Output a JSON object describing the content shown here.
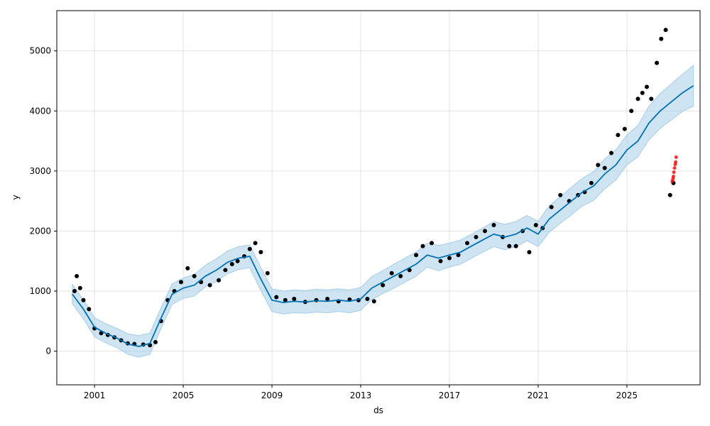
{
  "chart_data": {
    "type": "scatter",
    "title": "",
    "xlabel": "ds",
    "ylabel": "y",
    "xlim": [
      1999.3,
      2028.3
    ],
    "ylim": [
      -560,
      5670
    ],
    "x_ticks": [
      2001,
      2005,
      2009,
      2013,
      2017,
      2021,
      2025
    ],
    "x_tick_labels": [
      "2001",
      "2005",
      "2009",
      "2013",
      "2017",
      "2021",
      "2025"
    ],
    "y_ticks": [
      0,
      1000,
      2000,
      3000,
      4000,
      5000
    ],
    "y_tick_labels": [
      "0",
      "1000",
      "2000",
      "3000",
      "4000",
      "5000"
    ],
    "grid": true,
    "colors": {
      "observed": "#000000",
      "forecast": "#0072b2",
      "interval": "#a6cde8",
      "outliers": "#ff0000"
    },
    "series": [
      {
        "role": "observed",
        "x": [
          2000.1,
          2000.2,
          2000.35,
          2000.5,
          2000.75,
          2001.0,
          2001.3,
          2001.6,
          2001.9,
          2002.2,
          2002.5,
          2002.8,
          2003.2,
          2003.5,
          2003.75,
          2004.0,
          2004.3,
          2004.6,
          2004.9,
          2005.2,
          2005.5,
          2005.8,
          2006.2,
          2006.6,
          2006.9,
          2007.2,
          2007.45,
          2007.75,
          2008.0,
          2008.25,
          2008.5,
          2008.8,
          2009.2,
          2009.6,
          2010.0,
          2010.5,
          2011.0,
          2011.5,
          2012.0,
          2012.5,
          2012.9,
          2013.3,
          2013.6,
          2014.0,
          2014.4,
          2014.8,
          2015.2,
          2015.5,
          2015.8,
          2016.2,
          2016.6,
          2017.0,
          2017.4,
          2017.8,
          2018.2,
          2018.6,
          2019.0,
          2019.4,
          2019.7,
          2020.0,
          2020.3,
          2020.6,
          2020.9,
          2021.2,
          2021.6,
          2022.0,
          2022.4,
          2022.8,
          2023.1,
          2023.4,
          2023.7,
          2024.0,
          2024.3,
          2024.6,
          2024.9,
          2025.2,
          2025.5,
          2025.7,
          2025.9,
          2026.1,
          2026.35,
          2026.55,
          2026.75,
          2026.95,
          2027.1
        ],
        "values": [
          1000,
          1250,
          1050,
          850,
          700,
          380,
          300,
          270,
          230,
          180,
          130,
          120,
          110,
          100,
          150,
          500,
          850,
          1000,
          1150,
          1380,
          1250,
          1150,
          1100,
          1180,
          1350,
          1450,
          1500,
          1580,
          1700,
          1800,
          1650,
          1300,
          900,
          850,
          870,
          820,
          850,
          870,
          830,
          860,
          850,
          870,
          830,
          1100,
          1300,
          1250,
          1350,
          1600,
          1750,
          1800,
          1500,
          1550,
          1600,
          1800,
          1900,
          2000,
          2100,
          1900,
          1750,
          1750,
          2000,
          1650,
          2100,
          2050,
          2400,
          2600,
          2500,
          2600,
          2650,
          2800,
          3100,
          3050,
          3300,
          3600,
          3700,
          4000,
          4200,
          4300,
          4400,
          4200,
          4800,
          5200,
          5350,
          2600,
          2800
        ]
      },
      {
        "role": "outliers",
        "x": [
          2027.05,
          2027.08,
          2027.1,
          2027.12,
          2027.15,
          2027.18,
          2027.2,
          2027.22
        ],
        "values": [
          2830,
          2870,
          2910,
          2980,
          3050,
          3110,
          3150,
          3230
        ]
      },
      {
        "role": "forecast",
        "x": [
          2000.0,
          2000.5,
          2001.0,
          2001.5,
          2002.0,
          2002.5,
          2003.0,
          2003.5,
          2004.0,
          2004.5,
          2005.0,
          2005.5,
          2006.0,
          2006.5,
          2007.0,
          2007.5,
          2008.0,
          2008.5,
          2009.0,
          2009.5,
          2010.0,
          2010.5,
          2011.0,
          2011.5,
          2012.0,
          2012.5,
          2013.0,
          2013.5,
          2014.0,
          2014.5,
          2015.0,
          2015.5,
          2016.0,
          2016.5,
          2017.0,
          2017.5,
          2018.0,
          2018.5,
          2019.0,
          2019.5,
          2020.0,
          2020.5,
          2021.0,
          2021.5,
          2022.0,
          2022.5,
          2023.0,
          2023.5,
          2024.0,
          2024.5,
          2025.0,
          2025.5,
          2026.0,
          2026.5,
          2027.0,
          2027.5,
          2028.0
        ],
        "values": [
          950,
          700,
          400,
          300,
          220,
          120,
          80,
          130,
          550,
          950,
          1050,
          1100,
          1250,
          1350,
          1480,
          1550,
          1580,
          1200,
          850,
          810,
          830,
          820,
          840,
          830,
          850,
          830,
          870,
          1050,
          1150,
          1250,
          1350,
          1450,
          1600,
          1550,
          1600,
          1650,
          1750,
          1850,
          1950,
          1900,
          1950,
          2050,
          1950,
          2200,
          2350,
          2500,
          2650,
          2750,
          2950,
          3100,
          3350,
          3500,
          3800,
          4000,
          4150,
          4300,
          4420
        ]
      }
    ],
    "interval": {
      "x": [
        2000.0,
        2000.5,
        2001.0,
        2001.5,
        2002.0,
        2002.5,
        2003.0,
        2003.5,
        2004.0,
        2004.5,
        2005.0,
        2005.5,
        2006.0,
        2006.5,
        2007.0,
        2007.5,
        2008.0,
        2008.5,
        2009.0,
        2009.5,
        2010.0,
        2010.5,
        2011.0,
        2011.5,
        2012.0,
        2012.5,
        2013.0,
        2013.5,
        2014.0,
        2014.5,
        2015.0,
        2015.5,
        2016.0,
        2016.5,
        2017.0,
        2017.5,
        2018.0,
        2018.5,
        2019.0,
        2019.5,
        2020.0,
        2020.5,
        2021.0,
        2021.5,
        2022.0,
        2022.5,
        2023.0,
        2023.5,
        2024.0,
        2024.5,
        2025.0,
        2025.5,
        2026.0,
        2026.5,
        2027.0,
        2027.5,
        2028.0
      ],
      "upper": [
        1110,
        860,
        560,
        460,
        380,
        290,
        260,
        300,
        720,
        1120,
        1220,
        1280,
        1430,
        1540,
        1670,
        1740,
        1770,
        1390,
        1040,
        1000,
        1020,
        1010,
        1030,
        1020,
        1040,
        1020,
        1060,
        1240,
        1340,
        1450,
        1550,
        1650,
        1800,
        1760,
        1800,
        1850,
        1950,
        2050,
        2160,
        2110,
        2160,
        2260,
        2160,
        2420,
        2570,
        2730,
        2880,
        2990,
        3200,
        3350,
        3600,
        3760,
        4080,
        4290,
        4450,
        4610,
        4760
      ],
      "lower": [
        790,
        540,
        240,
        140,
        60,
        -50,
        -100,
        -50,
        380,
        780,
        880,
        920,
        1070,
        1160,
        1290,
        1360,
        1390,
        1010,
        660,
        620,
        640,
        630,
        650,
        640,
        660,
        640,
        680,
        860,
        960,
        1050,
        1150,
        1250,
        1400,
        1340,
        1400,
        1450,
        1550,
        1650,
        1740,
        1690,
        1740,
        1840,
        1740,
        1980,
        2130,
        2270,
        2420,
        2510,
        2700,
        2850,
        3100,
        3240,
        3520,
        3710,
        3850,
        3990,
        4080
      ]
    }
  }
}
